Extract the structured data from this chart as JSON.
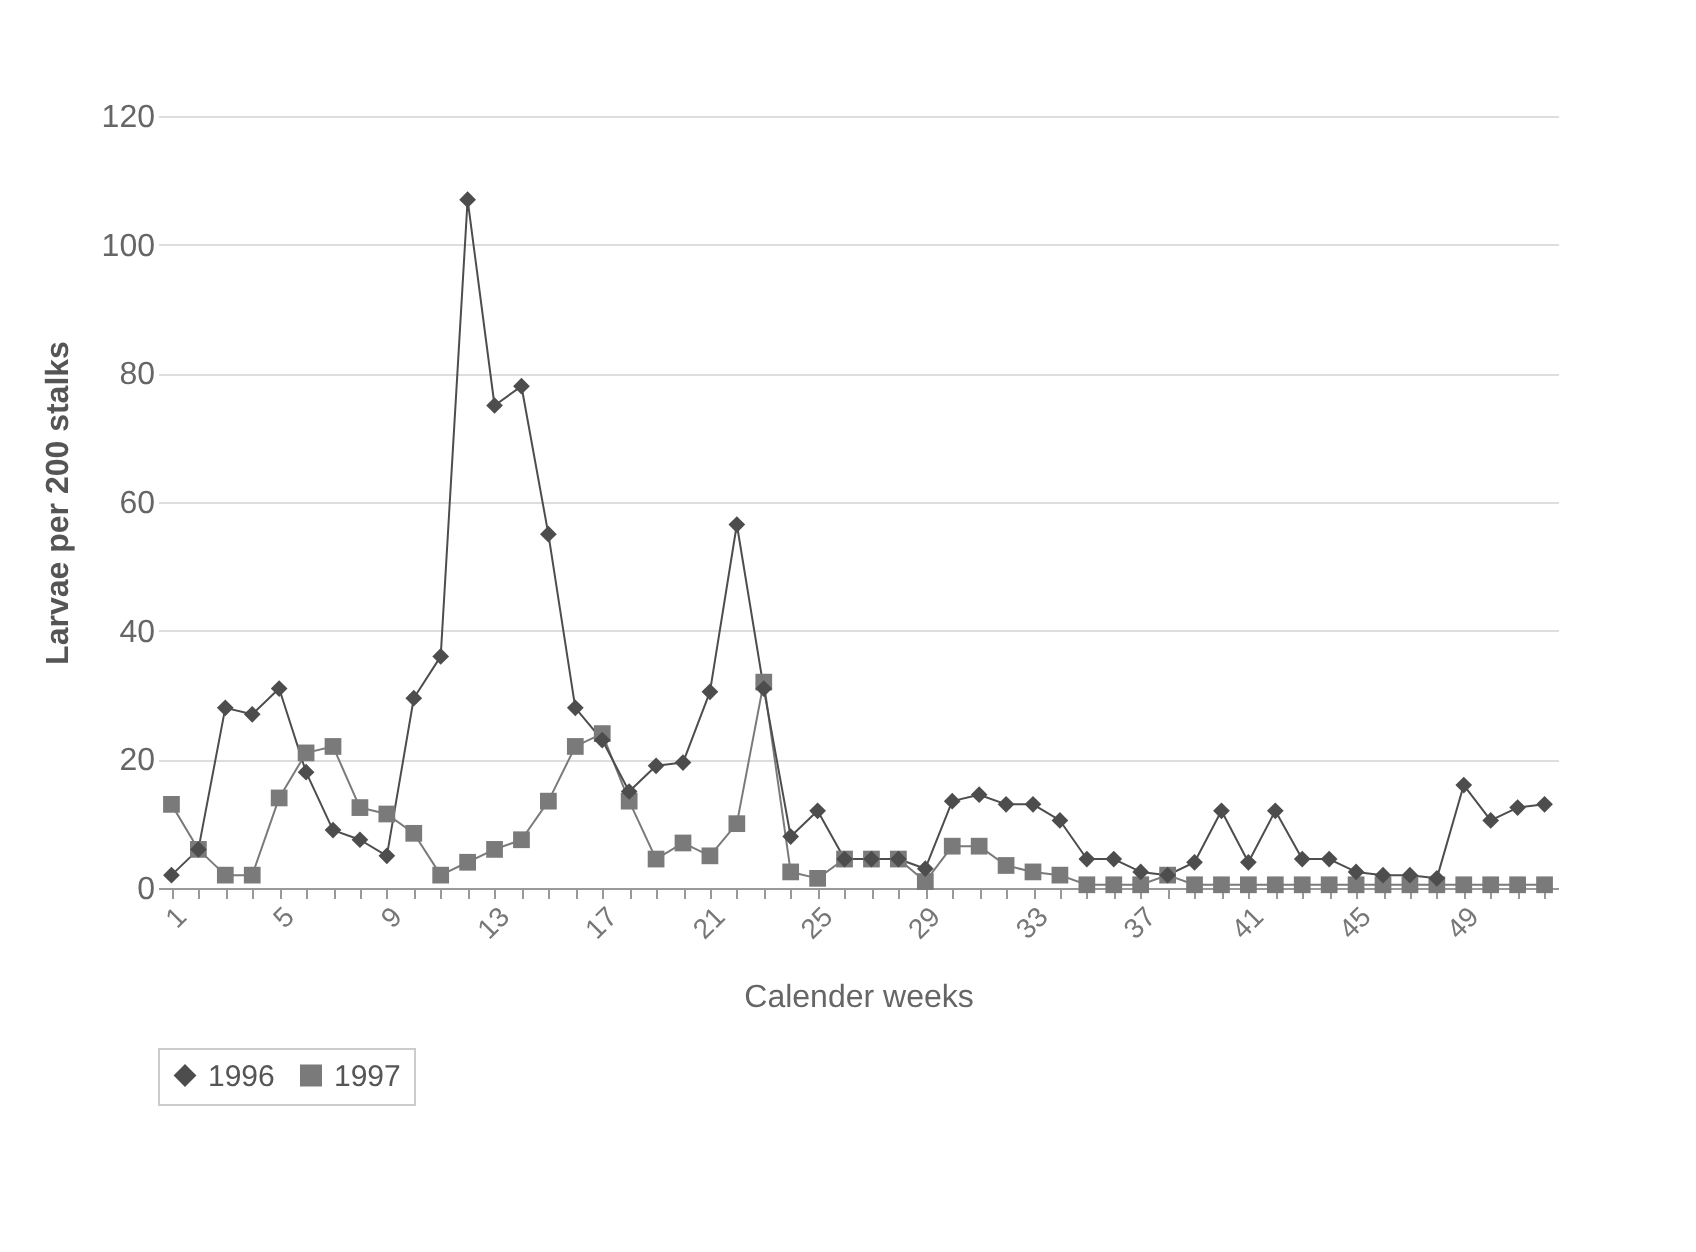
{
  "chart_data": {
    "type": "line",
    "xlabel": "Calender weeks",
    "ylabel": "Larvae per 200 stalks",
    "categories": [
      "1",
      null,
      null,
      null,
      "5",
      null,
      null,
      null,
      "9",
      null,
      null,
      null,
      "13",
      null,
      null,
      null,
      "17",
      null,
      null,
      null,
      "21",
      null,
      null,
      null,
      "25",
      null,
      null,
      null,
      "29",
      null,
      null,
      null,
      "33",
      null,
      null,
      null,
      "37",
      null,
      null,
      null,
      "41",
      null,
      null,
      null,
      "45",
      null,
      null,
      null,
      "49",
      null,
      null,
      null
    ],
    "series": [
      {
        "name": "1996",
        "color": "#4d4d4d",
        "marker": "diamond",
        "values": [
          2,
          6,
          28,
          27,
          31,
          18,
          9,
          7.5,
          5,
          29.5,
          36,
          107,
          75,
          78,
          55,
          28,
          23,
          15,
          19,
          19.5,
          30.5,
          56.5,
          31,
          8,
          12,
          4.5,
          4.5,
          4.5,
          3,
          13.5,
          14.5,
          13,
          13,
          10.5,
          4.5,
          4.5,
          2.5,
          2,
          4,
          12,
          4,
          12,
          4.5,
          4.5,
          2.5,
          2,
          2,
          1.5,
          16,
          10.5,
          12.5,
          13
        ]
      },
      {
        "name": "1997",
        "color": "#7a7a7a",
        "marker": "square",
        "values": [
          13,
          6,
          2,
          2,
          14,
          21,
          22,
          12.5,
          11.5,
          8.5,
          2,
          4,
          6,
          7.5,
          13.5,
          22,
          24,
          13.5,
          4.5,
          7,
          5,
          10,
          32,
          2.5,
          1.5,
          4.5,
          4.5,
          4.5,
          1,
          6.5,
          6.5,
          3.5,
          2.5,
          2,
          0.5,
          0.5,
          0.5,
          2,
          0.5,
          0.5,
          0.5,
          0.5,
          0.5,
          0.5,
          0.5,
          0.5,
          0.5,
          0.5,
          0.5,
          0.5,
          0.5,
          0.5
        ]
      }
    ],
    "ylim": [
      0,
      120
    ],
    "yticks": [
      0,
      20,
      40,
      60,
      80,
      100,
      120
    ],
    "grid": "y",
    "legend": "bottom",
    "line_style": "solid"
  }
}
